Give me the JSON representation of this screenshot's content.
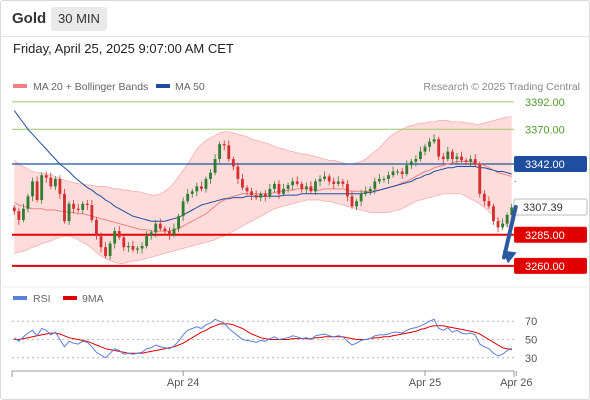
{
  "header": {
    "title": "Gold",
    "timeframe": "30 MIN"
  },
  "timestamp": "Friday, April 25, 2025 9:07:00 AM CET",
  "colors": {
    "bull": "#2e7d32",
    "bear": "#d32f2f",
    "ma20": "#f08080",
    "ma50": "#1f4e9e",
    "boll_fill": "#ffd6d6",
    "resistance": "#9dc86a",
    "pivot": "#1f4e9e",
    "support": "#e00000",
    "arrow": "#2b5aa0",
    "rsi": "#5b7fd6",
    "rsi_ma": "#e00000"
  },
  "chart_data": [
    {
      "type": "candlestick",
      "source_credit": "Research © 2025 Trading Central",
      "legend": [
        {
          "name": "MA 20 + Bollinger Bands",
          "color": "#f08080"
        },
        {
          "name": "MA 50",
          "color": "#1f4e9e"
        }
      ],
      "ylim": [
        3247,
        3400
      ],
      "x_tick_labels": [
        {
          "label": "Apr 24",
          "index": 37
        },
        {
          "label": "Apr 25",
          "index": 90
        },
        {
          "label": "Apr 26",
          "index": 110
        }
      ],
      "levels": [
        {
          "label": "3392.00",
          "value": 3392,
          "kind": "resistance"
        },
        {
          "label": "3370.00",
          "value": 3370,
          "kind": "resistance"
        },
        {
          "label": "3342.00",
          "value": 3342,
          "kind": "pivot"
        },
        {
          "label": "3285.00",
          "value": 3285,
          "kind": "support"
        },
        {
          "label": "3260.00",
          "value": 3260,
          "kind": "support"
        }
      ],
      "last_price": {
        "label": "3307.39",
        "value": 3307.39
      },
      "forecast_arrow": {
        "from": 3307.39,
        "to": 3262
      },
      "close": [
        3304,
        3297,
        3306,
        3316,
        3328,
        3313,
        3333,
        3331,
        3324,
        3330,
        3318,
        3296,
        3310,
        3306,
        3305,
        3310,
        3309,
        3297,
        3284,
        3275,
        3268,
        3278,
        3288,
        3283,
        3275,
        3276,
        3273,
        3274,
        3276,
        3284,
        3287,
        3294,
        3290,
        3288,
        3285,
        3290,
        3300,
        3312,
        3318,
        3320,
        3324,
        3322,
        3330,
        3335,
        3346,
        3358,
        3357,
        3346,
        3340,
        3330,
        3323,
        3320,
        3317,
        3315,
        3318,
        3316,
        3322,
        3326,
        3318,
        3322,
        3325,
        3328,
        3326,
        3322,
        3324,
        3320,
        3328,
        3330,
        3332,
        3328,
        3326,
        3328,
        3326,
        3316,
        3308,
        3312,
        3318,
        3320,
        3322,
        3328,
        3330,
        3330,
        3333,
        3336,
        3336,
        3334,
        3341,
        3344,
        3346,
        3352,
        3356,
        3360,
        3362,
        3348,
        3346,
        3352,
        3346,
        3348,
        3345,
        3344,
        3346,
        3342,
        3318,
        3312,
        3308,
        3296,
        3291,
        3294,
        3301,
        3307
      ],
      "ma20": [
        3311,
        3309,
        3308,
        3307,
        3306,
        3306,
        3306,
        3305,
        3305,
        3305,
        3304,
        3304,
        3303,
        3303,
        3302,
        3302,
        3301,
        3300,
        3299,
        3298,
        3297,
        3296,
        3295,
        3294,
        3293,
        3292,
        3291,
        3290,
        3289,
        3289,
        3288,
        3288,
        3288,
        3288,
        3288,
        3289,
        3290,
        3292,
        3294,
        3296,
        3298,
        3300,
        3302,
        3305,
        3308,
        3311,
        3313,
        3315,
        3316,
        3317,
        3318,
        3318,
        3318,
        3318,
        3318,
        3318,
        3318,
        3319,
        3320,
        3320,
        3321,
        3321,
        3322,
        3322,
        3322,
        3322,
        3321,
        3321,
        3322,
        3322,
        3322,
        3322,
        3322,
        3321,
        3320,
        3320,
        3320,
        3320,
        3320,
        3321,
        3321,
        3322,
        3323,
        3324,
        3325,
        3327,
        3328,
        3330,
        3332,
        3334,
        3336,
        3337,
        3339,
        3340,
        3341,
        3342,
        3343,
        3344,
        3344,
        3344,
        3344,
        3343,
        3342,
        3341,
        3339,
        3337,
        3335,
        3334,
        3333,
        3332
      ],
      "boll_upper": [
        3345,
        3342,
        3340,
        3338,
        3336,
        3335,
        3335,
        3334,
        3333,
        3332,
        3330,
        3329,
        3328,
        3327,
        3326,
        3326,
        3325,
        3325,
        3324,
        3324,
        3324,
        3323,
        3322,
        3322,
        3321,
        3321,
        3320,
        3320,
        3319,
        3318,
        3317,
        3317,
        3318,
        3320,
        3323,
        3327,
        3332,
        3337,
        3342,
        3348,
        3354,
        3358,
        3361,
        3363,
        3365,
        3367,
        3368,
        3368,
        3367,
        3366,
        3365,
        3364,
        3362,
        3361,
        3360,
        3359,
        3358,
        3356,
        3355,
        3354,
        3353,
        3352,
        3351,
        3350,
        3350,
        3349,
        3348,
        3347,
        3346,
        3345,
        3345,
        3344,
        3343,
        3342,
        3342,
        3343,
        3344,
        3346,
        3349,
        3352,
        3355,
        3359,
        3363,
        3366,
        3368,
        3370,
        3372,
        3373,
        3374,
        3375,
        3375,
        3376,
        3376,
        3377,
        3377,
        3377,
        3376,
        3376,
        3376,
        3375,
        3375,
        3374,
        3374,
        3375,
        3376,
        3377,
        3378,
        3379,
        3380,
        3380
      ],
      "boll_lower": [
        3270,
        3271,
        3272,
        3273,
        3275,
        3276,
        3278,
        3279,
        3280,
        3282,
        3283,
        3284,
        3284,
        3283,
        3281,
        3279,
        3277,
        3274,
        3271,
        3268,
        3266,
        3264,
        3263,
        3262,
        3262,
        3263,
        3264,
        3264,
        3265,
        3266,
        3267,
        3268,
        3269,
        3270,
        3271,
        3272,
        3273,
        3274,
        3275,
        3276,
        3277,
        3278,
        3279,
        3280,
        3281,
        3283,
        3284,
        3286,
        3288,
        3290,
        3292,
        3294,
        3296,
        3298,
        3300,
        3302,
        3304,
        3306,
        3307,
        3308,
        3309,
        3310,
        3311,
        3312,
        3313,
        3313,
        3313,
        3313,
        3312,
        3312,
        3311,
        3310,
        3309,
        3308,
        3307,
        3306,
        3305,
        3304,
        3303,
        3303,
        3303,
        3303,
        3303,
        3304,
        3305,
        3306,
        3308,
        3310,
        3312,
        3313,
        3314,
        3315,
        3316,
        3317,
        3318,
        3318,
        3318,
        3318,
        3318,
        3316,
        3314,
        3312,
        3310,
        3307,
        3304,
        3300,
        3297,
        3294,
        3292,
        3290
      ],
      "ma50": [
        3385,
        3380,
        3375,
        3370,
        3366,
        3362,
        3358,
        3354,
        3350,
        3346,
        3342,
        3339,
        3336,
        3332,
        3329,
        3326,
        3323,
        3321,
        3318,
        3316,
        3313,
        3311,
        3308,
        3306,
        3304,
        3302,
        3300,
        3299,
        3298,
        3297,
        3296,
        3296,
        3296,
        3296,
        3297,
        3298,
        3299,
        3301,
        3303,
        3305,
        3307,
        3309,
        3310,
        3311,
        3312,
        3313,
        3314,
        3314,
        3315,
        3315,
        3315,
        3316,
        3316,
        3316,
        3316,
        3316,
        3316,
        3316,
        3316,
        3317,
        3317,
        3317,
        3317,
        3318,
        3318,
        3318,
        3318,
        3318,
        3318,
        3318,
        3318,
        3318,
        3318,
        3318,
        3318,
        3318,
        3318,
        3319,
        3319,
        3320,
        3321,
        3322,
        3323,
        3324,
        3325,
        3326,
        3327,
        3328,
        3330,
        3331,
        3333,
        3334,
        3336,
        3337,
        3338,
        3339,
        3339,
        3340,
        3340,
        3340,
        3340,
        3340,
        3339,
        3339,
        3338,
        3337,
        3336,
        3336,
        3335,
        3334
      ]
    },
    {
      "type": "line",
      "legend": [
        {
          "name": "RSI",
          "color": "#5b7fd6"
        },
        {
          "name": "9MA",
          "color": "#e00000"
        }
      ],
      "ylim": [
        20,
        80
      ],
      "y_ticks": [
        70,
        50,
        30
      ],
      "series": [
        {
          "name": "RSI",
          "values": [
            52,
            48,
            53,
            57,
            60,
            54,
            62,
            60,
            55,
            58,
            50,
            42,
            48,
            46,
            45,
            48,
            47,
            42,
            36,
            33,
            30,
            35,
            40,
            38,
            34,
            35,
            34,
            35,
            36,
            40,
            41,
            44,
            42,
            41,
            40,
            43,
            48,
            55,
            60,
            62,
            64,
            62,
            66,
            68,
            72,
            70,
            68,
            62,
            58,
            54,
            50,
            49,
            48,
            47,
            49,
            48,
            51,
            53,
            50,
            51,
            52,
            54,
            53,
            51,
            52,
            50,
            54,
            55,
            56,
            54,
            53,
            54,
            53,
            48,
            44,
            46,
            49,
            50,
            51,
            54,
            55,
            55,
            56,
            58,
            58,
            57,
            60,
            62,
            63,
            65,
            67,
            70,
            72,
            62,
            60,
            63,
            58,
            60,
            57,
            56,
            57,
            55,
            45,
            42,
            40,
            35,
            32,
            34,
            38,
            41
          ]
        },
        {
          "name": "9MA",
          "values": [
            50,
            50,
            51,
            52,
            53,
            54,
            55,
            56,
            57,
            57,
            56,
            54,
            52,
            51,
            50,
            49,
            48,
            46,
            44,
            42,
            40,
            39,
            38,
            37,
            36,
            35,
            35,
            35,
            35,
            36,
            37,
            38,
            39,
            40,
            41,
            42,
            44,
            46,
            49,
            52,
            55,
            58,
            60,
            63,
            65,
            67,
            67,
            67,
            66,
            64,
            62,
            59,
            56,
            54,
            52,
            51,
            50,
            50,
            50,
            50,
            50,
            51,
            51,
            51,
            51,
            51,
            52,
            52,
            53,
            53,
            53,
            53,
            53,
            52,
            51,
            50,
            50,
            50,
            51,
            52,
            52,
            53,
            53,
            54,
            55,
            56,
            57,
            58,
            59,
            61,
            62,
            64,
            65,
            65,
            65,
            64,
            63,
            62,
            61,
            60,
            59,
            58,
            56,
            53,
            50,
            47,
            44,
            41,
            40,
            39
          ]
        }
      ]
    }
  ]
}
